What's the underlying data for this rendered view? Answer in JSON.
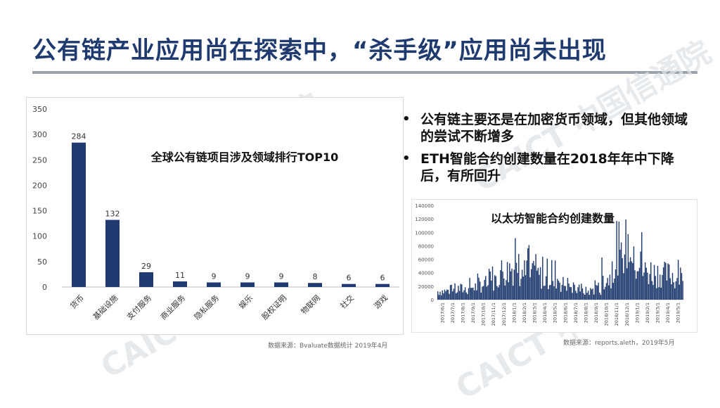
{
  "title": "公有链产业应用尚在探索中，“杀手级”应用尚未出现",
  "watermark_text": "CAICT 中国信通院",
  "bullets": [
    "公有链主要还是在加密货币领域，但其他领域的尝试不断增多",
    "ETH智能合约创建数量在2018年年中下降后，有所回升"
  ],
  "chart_data": [
    {
      "type": "bar",
      "title": "全球公有链项目涉及领域排行TOP10",
      "categories": [
        "货币",
        "基础设施",
        "支付服务",
        "商业服务",
        "隐私服务",
        "娱乐",
        "股权证明",
        "物联网",
        "社交",
        "游戏"
      ],
      "values": [
        284,
        132,
        29,
        11,
        9,
        9,
        9,
        8,
        6,
        6
      ],
      "ylim": [
        0,
        350
      ],
      "yticks": [
        0,
        50,
        100,
        150,
        200,
        250,
        300,
        350
      ],
      "bar_color": "#1f3a6e",
      "source": "数据来源：Bvaluate数据统计 2019年4月"
    },
    {
      "type": "bar",
      "title": "以太坊智能合约创建数量",
      "ylim": [
        0,
        140000
      ],
      "yticks": [
        0,
        20000,
        40000,
        60000,
        80000,
        100000,
        120000,
        140000
      ],
      "x_tick_labels": [
        "2017/6/1",
        "2017/7/1",
        "2017/8/1",
        "2017/9/1",
        "2017/10/1",
        "2017/11/1",
        "2017/12/1",
        "2018/1/1",
        "2018/2/1",
        "2018/3/1",
        "2018/4/1",
        "2018/5/1",
        "2018/6/1",
        "2018/7/1",
        "2018/8/1",
        "2018/9/1",
        "2018/10/1",
        "2018/11/1",
        "2018/12/1",
        "2019/1/1",
        "2019/2/1",
        "2019/3/1",
        "2019/4/1",
        "2019/5/1"
      ],
      "monthly_values": [
        12000,
        13000,
        15000,
        18000,
        22000,
        28000,
        40000,
        45000,
        38000,
        35000,
        32000,
        30000,
        22000,
        14000,
        12000,
        14000,
        30000,
        55000,
        75000,
        50000,
        40000,
        38000,
        35000,
        30000
      ],
      "bar_color": "#1f3a6e",
      "source": "数据来源：reports.aleth，2019年5月"
    }
  ]
}
